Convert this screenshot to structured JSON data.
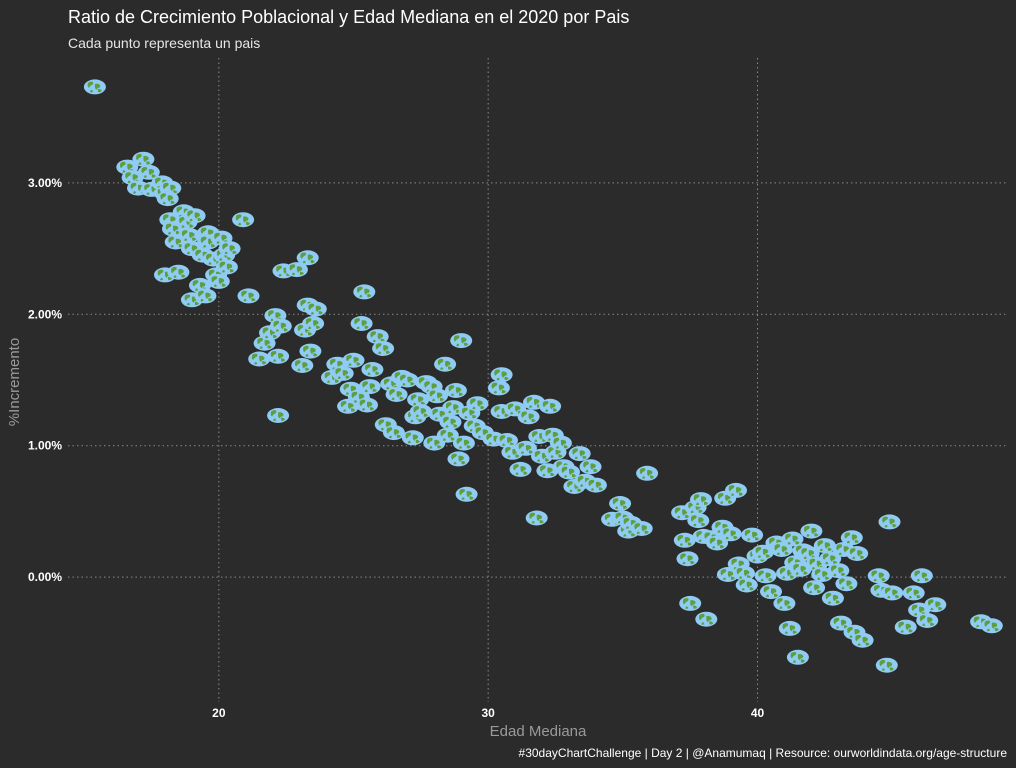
{
  "chart_data": {
    "type": "scatter",
    "title": "Ratio de Crecimiento Poblacional y Edad Mediana en el 2020 por Pais",
    "subtitle": "Cada punto representa un pais",
    "xlabel": "Edad Mediana",
    "ylabel": "%Incremento",
    "caption": "#30dayChartChallenge | Day 2 | @Anamumaq | Resource: ourworldindata.org/age-structure",
    "xlim": [
      14.4,
      49.3
    ],
    "ylim": [
      -0.95,
      3.95
    ],
    "x_ticks": [
      {
        "value": 20,
        "label": "20"
      },
      {
        "value": 30,
        "label": "30"
      },
      {
        "value": 40,
        "label": "40"
      }
    ],
    "y_ticks": [
      {
        "value": 0,
        "label": "0.00%"
      },
      {
        "value": 1,
        "label": "1.00%"
      },
      {
        "value": 2,
        "label": "2.00%"
      },
      {
        "value": 3,
        "label": "3.00%"
      }
    ],
    "marker": "earth-icon",
    "colors": {
      "background": "#2b2b2b",
      "ocean": "#8fcbf2",
      "land": "#5e9e3f",
      "grid": "#8a8a8a"
    },
    "points": [
      [
        15.4,
        3.73
      ],
      [
        16.6,
        3.12
      ],
      [
        16.8,
        3.04
      ],
      [
        17.0,
        2.96
      ],
      [
        17.2,
        3.18
      ],
      [
        17.4,
        3.08
      ],
      [
        17.5,
        2.95
      ],
      [
        17.9,
        3.0
      ],
      [
        18.0,
        2.92
      ],
      [
        18.2,
        2.96
      ],
      [
        18.1,
        2.88
      ],
      [
        18.0,
        2.3
      ],
      [
        18.2,
        2.72
      ],
      [
        18.4,
        2.55
      ],
      [
        18.3,
        2.65
      ],
      [
        18.5,
        2.32
      ],
      [
        18.7,
        2.78
      ],
      [
        18.8,
        2.7
      ],
      [
        18.9,
        2.6
      ],
      [
        19.0,
        2.5
      ],
      [
        19.1,
        2.75
      ],
      [
        19.0,
        2.11
      ],
      [
        19.3,
        2.22
      ],
      [
        19.4,
        2.45
      ],
      [
        19.5,
        2.14
      ],
      [
        19.6,
        2.62
      ],
      [
        19.6,
        2.55
      ],
      [
        19.8,
        2.42
      ],
      [
        19.9,
        2.3
      ],
      [
        20.0,
        2.25
      ],
      [
        20.1,
        2.58
      ],
      [
        20.2,
        2.45
      ],
      [
        20.3,
        2.36
      ],
      [
        20.4,
        2.5
      ],
      [
        20.9,
        2.72
      ],
      [
        21.1,
        2.14
      ],
      [
        21.5,
        1.66
      ],
      [
        21.7,
        1.78
      ],
      [
        21.9,
        1.86
      ],
      [
        22.1,
        1.99
      ],
      [
        22.2,
        1.68
      ],
      [
        22.3,
        1.91
      ],
      [
        22.4,
        2.33
      ],
      [
        22.2,
        1.23
      ],
      [
        22.9,
        2.34
      ],
      [
        23.1,
        1.61
      ],
      [
        23.2,
        1.88
      ],
      [
        23.3,
        2.43
      ],
      [
        23.4,
        1.72
      ],
      [
        23.5,
        1.93
      ],
      [
        23.3,
        2.07
      ],
      [
        23.6,
        2.04
      ],
      [
        24.2,
        1.52
      ],
      [
        24.4,
        1.62
      ],
      [
        24.6,
        1.55
      ],
      [
        24.8,
        1.3
      ],
      [
        24.9,
        1.43
      ],
      [
        25.0,
        1.65
      ],
      [
        25.2,
        1.37
      ],
      [
        25.3,
        1.93
      ],
      [
        25.4,
        2.17
      ],
      [
        25.5,
        1.31
      ],
      [
        25.6,
        1.45
      ],
      [
        25.7,
        1.58
      ],
      [
        25.9,
        1.83
      ],
      [
        26.1,
        1.74
      ],
      [
        26.2,
        1.16
      ],
      [
        26.4,
        1.47
      ],
      [
        26.5,
        1.1
      ],
      [
        26.6,
        1.39
      ],
      [
        26.8,
        1.52
      ],
      [
        27.0,
        1.5
      ],
      [
        27.2,
        1.06
      ],
      [
        27.3,
        1.22
      ],
      [
        27.4,
        1.35
      ],
      [
        27.5,
        1.26
      ],
      [
        27.7,
        1.48
      ],
      [
        27.9,
        1.45
      ],
      [
        28.0,
        1.02
      ],
      [
        28.1,
        1.38
      ],
      [
        28.2,
        1.24
      ],
      [
        28.4,
        1.62
      ],
      [
        28.5,
        1.08
      ],
      [
        28.6,
        1.18
      ],
      [
        28.7,
        1.29
      ],
      [
        28.8,
        1.42
      ],
      [
        28.9,
        0.9
      ],
      [
        29.0,
        1.8
      ],
      [
        29.1,
        1.02
      ],
      [
        29.2,
        0.63
      ],
      [
        29.3,
        1.25
      ],
      [
        29.5,
        1.15
      ],
      [
        29.6,
        1.32
      ],
      [
        29.8,
        1.1
      ],
      [
        30.2,
        1.05
      ],
      [
        30.5,
        1.26
      ],
      [
        30.4,
        1.44
      ],
      [
        30.5,
        1.54
      ],
      [
        30.7,
        1.04
      ],
      [
        30.9,
        0.95
      ],
      [
        31.0,
        1.28
      ],
      [
        31.2,
        0.82
      ],
      [
        31.4,
        0.98
      ],
      [
        31.5,
        1.22
      ],
      [
        31.7,
        1.33
      ],
      [
        31.8,
        0.45
      ],
      [
        31.9,
        1.07
      ],
      [
        32.0,
        0.92
      ],
      [
        32.2,
        0.81
      ],
      [
        32.3,
        1.3
      ],
      [
        32.4,
        1.08
      ],
      [
        32.5,
        0.95
      ],
      [
        32.7,
        1.02
      ],
      [
        32.8,
        0.84
      ],
      [
        33.0,
        0.8
      ],
      [
        33.2,
        0.69
      ],
      [
        33.4,
        0.94
      ],
      [
        33.6,
        0.73
      ],
      [
        33.8,
        0.84
      ],
      [
        34.0,
        0.7
      ],
      [
        34.6,
        0.44
      ],
      [
        34.9,
        0.56
      ],
      [
        35.0,
        0.45
      ],
      [
        35.2,
        0.35
      ],
      [
        35.3,
        0.41
      ],
      [
        35.7,
        0.37
      ],
      [
        35.9,
        0.79
      ],
      [
        37.2,
        0.49
      ],
      [
        37.3,
        0.28
      ],
      [
        37.4,
        0.14
      ],
      [
        37.5,
        -0.2
      ],
      [
        37.7,
        0.53
      ],
      [
        37.8,
        0.43
      ],
      [
        37.9,
        0.59
      ],
      [
        38.0,
        0.31
      ],
      [
        38.1,
        -0.32
      ],
      [
        38.3,
        0.3
      ],
      [
        38.5,
        0.26
      ],
      [
        38.7,
        0.38
      ],
      [
        38.8,
        0.6
      ],
      [
        38.9,
        0.02
      ],
      [
        39.0,
        0.33
      ],
      [
        39.2,
        0.66
      ],
      [
        39.3,
        0.1
      ],
      [
        39.5,
        0.03
      ],
      [
        39.6,
        -0.06
      ],
      [
        39.8,
        0.32
      ],
      [
        40.0,
        0.16
      ],
      [
        40.2,
        0.19
      ],
      [
        40.3,
        0.01
      ],
      [
        40.5,
        -0.11
      ],
      [
        40.7,
        0.26
      ],
      [
        40.9,
        0.21
      ],
      [
        41.0,
        -0.2
      ],
      [
        41.1,
        0.03
      ],
      [
        41.2,
        -0.39
      ],
      [
        41.3,
        0.29
      ],
      [
        41.4,
        0.11
      ],
      [
        41.5,
        -0.61
      ],
      [
        41.6,
        0.06
      ],
      [
        41.7,
        0.2
      ],
      [
        41.9,
        0.18
      ],
      [
        42.0,
        0.35
      ],
      [
        42.1,
        -0.08
      ],
      [
        42.2,
        0.1
      ],
      [
        42.4,
        0.02
      ],
      [
        42.5,
        0.24
      ],
      [
        42.7,
        0.14
      ],
      [
        42.8,
        -0.16
      ],
      [
        43.0,
        0.05
      ],
      [
        43.1,
        -0.35
      ],
      [
        43.2,
        0.21
      ],
      [
        43.3,
        -0.05
      ],
      [
        43.5,
        0.3
      ],
      [
        43.6,
        -0.42
      ],
      [
        43.7,
        0.18
      ],
      [
        43.9,
        -0.48
      ],
      [
        44.5,
        0.01
      ],
      [
        44.6,
        -0.1
      ],
      [
        44.8,
        -0.67
      ],
      [
        44.9,
        0.42
      ],
      [
        45.0,
        -0.12
      ],
      [
        45.5,
        -0.38
      ],
      [
        45.8,
        -0.12
      ],
      [
        46.0,
        -0.25
      ],
      [
        46.1,
        0.01
      ],
      [
        46.3,
        -0.33
      ],
      [
        46.6,
        -0.21
      ],
      [
        48.3,
        -0.34
      ],
      [
        48.7,
        -0.37
      ]
    ]
  }
}
